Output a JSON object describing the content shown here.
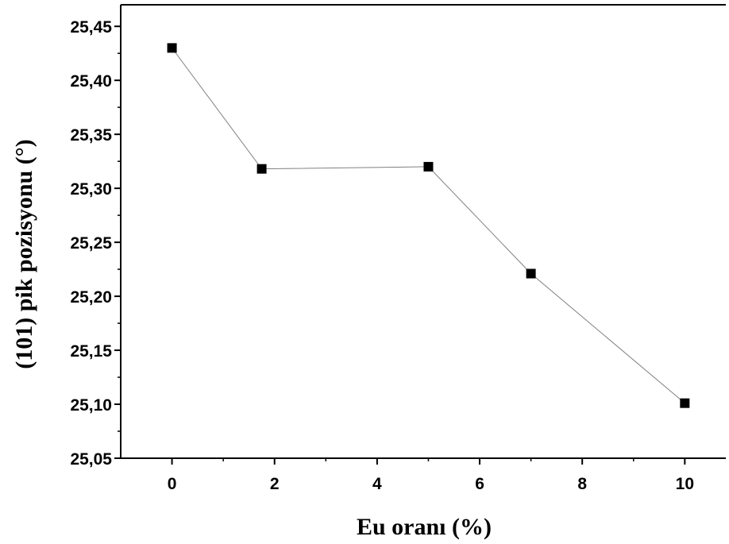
{
  "chart_data": {
    "type": "line",
    "title": "",
    "xlabel": "Eu oranı (%)",
    "ylabel": "(101) pik pozisyonu (°)",
    "xlim": [
      -1,
      10.8
    ],
    "ylim": [
      25.05,
      25.47
    ],
    "x_ticks": [
      "0",
      "2",
      "4",
      "6",
      "8",
      "10"
    ],
    "y_ticks": [
      "25,05",
      "25,10",
      "25,15",
      "25,20",
      "25,25",
      "25,30",
      "25,35",
      "25,40",
      "25,45"
    ],
    "grid": false,
    "series": [
      {
        "marker": "square",
        "color": "#000000",
        "line_color": "#808080",
        "x": [
          0,
          1.75,
          5,
          7,
          10
        ],
        "y": [
          25.43,
          25.318,
          25.32,
          25.221,
          25.101
        ]
      }
    ]
  }
}
